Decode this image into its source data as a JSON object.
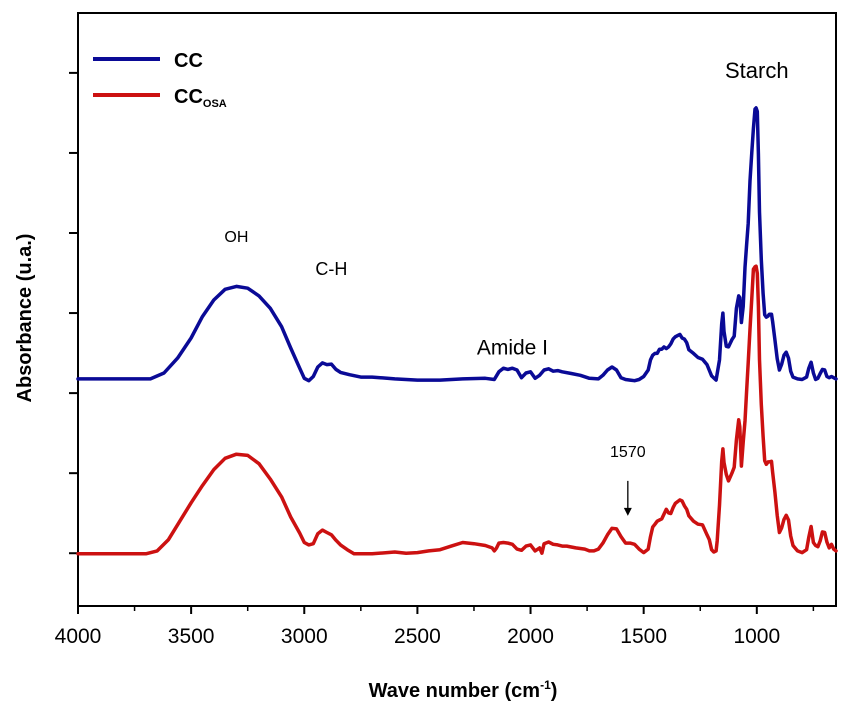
{
  "chart_data": {
    "type": "line",
    "xlabel": "Wave number (cm",
    "xlabel_sup": "-1",
    "xlabel_close": ")",
    "ylabel": "Absorbance (u.a.)",
    "xlim": [
      4000,
      650
    ],
    "ylim": [
      0,
      100
    ],
    "x_reversed": true,
    "y_tick_labels_shown": false,
    "grid": false,
    "legend_position": "top-left",
    "x_ticks": [
      "4000",
      "3500",
      "3000",
      "2500",
      "2000",
      "1500",
      "1000"
    ],
    "x_tick_values": [
      4000,
      3500,
      3000,
      2500,
      2000,
      1500,
      1000
    ],
    "x_minor_ticks": [
      3750,
      3250,
      2750,
      2250,
      1750,
      1250,
      750
    ],
    "y_tick_values": [
      8.9,
      22.4,
      35.9,
      49.4,
      62.9,
      76.4,
      89.9
    ],
    "series": [
      {
        "name": "CC",
        "color": "#0a0a96",
        "points": [
          [
            4000,
            38.3
          ],
          [
            3800,
            38.3
          ],
          [
            3680,
            38.3
          ],
          [
            3620,
            39.3
          ],
          [
            3560,
            41.8
          ],
          [
            3500,
            45.2
          ],
          [
            3450,
            48.8
          ],
          [
            3400,
            51.6
          ],
          [
            3350,
            53.4
          ],
          [
            3300,
            53.9
          ],
          [
            3250,
            53.6
          ],
          [
            3200,
            52.3
          ],
          [
            3150,
            50.2
          ],
          [
            3100,
            47.1
          ],
          [
            3060,
            43.5
          ],
          [
            3020,
            40.1
          ],
          [
            3000,
            38.4
          ],
          [
            2980,
            38.0
          ],
          [
            2960,
            38.7
          ],
          [
            2940,
            40.3
          ],
          [
            2920,
            41.0
          ],
          [
            2900,
            40.7
          ],
          [
            2880,
            40.8
          ],
          [
            2860,
            39.9
          ],
          [
            2840,
            39.4
          ],
          [
            2800,
            39.0
          ],
          [
            2750,
            38.6
          ],
          [
            2700,
            38.6
          ],
          [
            2600,
            38.3
          ],
          [
            2500,
            38.1
          ],
          [
            2400,
            38.1
          ],
          [
            2300,
            38.3
          ],
          [
            2200,
            38.4
          ],
          [
            2160,
            38.2
          ],
          [
            2140,
            39.5
          ],
          [
            2120,
            40.1
          ],
          [
            2100,
            39.9
          ],
          [
            2080,
            40.1
          ],
          [
            2060,
            39.8
          ],
          [
            2040,
            38.5
          ],
          [
            2020,
            39.3
          ],
          [
            2000,
            39.5
          ],
          [
            1980,
            38.4
          ],
          [
            1960,
            38.9
          ],
          [
            1940,
            39.8
          ],
          [
            1920,
            40.0
          ],
          [
            1900,
            39.6
          ],
          [
            1880,
            39.7
          ],
          [
            1860,
            39.5
          ],
          [
            1820,
            39.2
          ],
          [
            1780,
            38.9
          ],
          [
            1740,
            38.4
          ],
          [
            1700,
            38.3
          ],
          [
            1680,
            38.9
          ],
          [
            1660,
            39.8
          ],
          [
            1640,
            40.3
          ],
          [
            1620,
            39.8
          ],
          [
            1600,
            38.5
          ],
          [
            1580,
            38.2
          ],
          [
            1560,
            38.1
          ],
          [
            1540,
            38.0
          ],
          [
            1520,
            38.2
          ],
          [
            1500,
            38.7
          ],
          [
            1480,
            39.8
          ],
          [
            1470,
            41.5
          ],
          [
            1460,
            42.3
          ],
          [
            1450,
            42.6
          ],
          [
            1440,
            42.6
          ],
          [
            1430,
            43.3
          ],
          [
            1420,
            43.3
          ],
          [
            1410,
            43.7
          ],
          [
            1400,
            43.4
          ],
          [
            1390,
            43.7
          ],
          [
            1380,
            44.2
          ],
          [
            1370,
            45.0
          ],
          [
            1360,
            45.4
          ],
          [
            1350,
            45.6
          ],
          [
            1340,
            45.8
          ],
          [
            1330,
            45.2
          ],
          [
            1320,
            45.0
          ],
          [
            1310,
            44.4
          ],
          [
            1300,
            43.2
          ],
          [
            1280,
            42.6
          ],
          [
            1260,
            41.9
          ],
          [
            1240,
            41.6
          ],
          [
            1220,
            40.7
          ],
          [
            1200,
            38.8
          ],
          [
            1180,
            38.1
          ],
          [
            1165,
            41.5
          ],
          [
            1155,
            47.6
          ],
          [
            1150,
            49.4
          ],
          [
            1145,
            46.3
          ],
          [
            1135,
            43.8
          ],
          [
            1125,
            43.7
          ],
          [
            1110,
            44.9
          ],
          [
            1100,
            45.5
          ],
          [
            1090,
            50.2
          ],
          [
            1080,
            52.3
          ],
          [
            1075,
            52.0
          ],
          [
            1068,
            47.8
          ],
          [
            1060,
            50.5
          ],
          [
            1052,
            57.1
          ],
          [
            1045,
            60.9
          ],
          [
            1038,
            64.5
          ],
          [
            1030,
            71.7
          ],
          [
            1022,
            76.5
          ],
          [
            1015,
            80.5
          ],
          [
            1008,
            83.8
          ],
          [
            1003,
            84.0
          ],
          [
            998,
            83.4
          ],
          [
            993,
            76.2
          ],
          [
            988,
            66.4
          ],
          [
            980,
            58.4
          ],
          [
            972,
            52.7
          ],
          [
            965,
            49.1
          ],
          [
            958,
            48.7
          ],
          [
            950,
            48.9
          ],
          [
            945,
            49.2
          ],
          [
            935,
            49.2
          ],
          [
            930,
            48.0
          ],
          [
            920,
            44.9
          ],
          [
            910,
            41.7
          ],
          [
            900,
            39.8
          ],
          [
            890,
            40.8
          ],
          [
            880,
            42.3
          ],
          [
            870,
            42.8
          ],
          [
            860,
            41.8
          ],
          [
            850,
            39.6
          ],
          [
            840,
            38.6
          ],
          [
            820,
            38.3
          ],
          [
            800,
            38.2
          ],
          [
            780,
            38.6
          ],
          [
            770,
            40.1
          ],
          [
            760,
            41.1
          ],
          [
            750,
            39.3
          ],
          [
            740,
            38.2
          ],
          [
            730,
            38.4
          ],
          [
            720,
            39.2
          ],
          [
            710,
            39.9
          ],
          [
            700,
            39.8
          ],
          [
            690,
            38.7
          ],
          [
            680,
            38.5
          ],
          [
            670,
            38.7
          ],
          [
            660,
            38.5
          ],
          [
            650,
            38.3
          ]
        ]
      },
      {
        "name": "CC",
        "name_sub": "OSA",
        "color": "#cc1111",
        "points": [
          [
            4000,
            8.8
          ],
          [
            3800,
            8.8
          ],
          [
            3700,
            8.8
          ],
          [
            3650,
            9.3
          ],
          [
            3600,
            11.2
          ],
          [
            3550,
            14.3
          ],
          [
            3500,
            17.4
          ],
          [
            3450,
            20.3
          ],
          [
            3400,
            23.0
          ],
          [
            3350,
            24.9
          ],
          [
            3300,
            25.6
          ],
          [
            3250,
            25.4
          ],
          [
            3200,
            24.0
          ],
          [
            3150,
            21.4
          ],
          [
            3100,
            18.4
          ],
          [
            3060,
            15.0
          ],
          [
            3020,
            12.3
          ],
          [
            3000,
            10.7
          ],
          [
            2980,
            10.3
          ],
          [
            2960,
            10.5
          ],
          [
            2940,
            12.2
          ],
          [
            2920,
            12.8
          ],
          [
            2900,
            12.4
          ],
          [
            2880,
            12.0
          ],
          [
            2860,
            11.1
          ],
          [
            2840,
            10.3
          ],
          [
            2810,
            9.5
          ],
          [
            2780,
            8.8
          ],
          [
            2700,
            8.8
          ],
          [
            2600,
            9.1
          ],
          [
            2550,
            8.9
          ],
          [
            2500,
            9.0
          ],
          [
            2450,
            9.3
          ],
          [
            2400,
            9.5
          ],
          [
            2350,
            10.1
          ],
          [
            2300,
            10.7
          ],
          [
            2250,
            10.5
          ],
          [
            2200,
            10.2
          ],
          [
            2170,
            9.8
          ],
          [
            2160,
            9.3
          ],
          [
            2150,
            9.8
          ],
          [
            2140,
            10.6
          ],
          [
            2120,
            10.7
          ],
          [
            2100,
            10.6
          ],
          [
            2080,
            10.4
          ],
          [
            2060,
            9.6
          ],
          [
            2040,
            9.4
          ],
          [
            2020,
            10.1
          ],
          [
            2000,
            10.3
          ],
          [
            1980,
            9.3
          ],
          [
            1960,
            9.8
          ],
          [
            1950,
            8.9
          ],
          [
            1940,
            10.5
          ],
          [
            1920,
            10.8
          ],
          [
            1900,
            10.4
          ],
          [
            1880,
            10.3
          ],
          [
            1860,
            10.1
          ],
          [
            1840,
            10.1
          ],
          [
            1800,
            9.8
          ],
          [
            1760,
            9.6
          ],
          [
            1740,
            9.3
          ],
          [
            1720,
            9.3
          ],
          [
            1700,
            9.6
          ],
          [
            1680,
            10.6
          ],
          [
            1660,
            12.0
          ],
          [
            1640,
            13.1
          ],
          [
            1620,
            13.0
          ],
          [
            1600,
            11.7
          ],
          [
            1580,
            10.6
          ],
          [
            1570,
            10.6
          ],
          [
            1560,
            10.6
          ],
          [
            1540,
            10.4
          ],
          [
            1520,
            9.6
          ],
          [
            1500,
            9.0
          ],
          [
            1480,
            9.6
          ],
          [
            1470,
            11.7
          ],
          [
            1460,
            13.3
          ],
          [
            1450,
            13.8
          ],
          [
            1440,
            14.3
          ],
          [
            1420,
            14.7
          ],
          [
            1400,
            16.3
          ],
          [
            1390,
            15.7
          ],
          [
            1380,
            15.6
          ],
          [
            1370,
            16.6
          ],
          [
            1360,
            17.3
          ],
          [
            1350,
            17.6
          ],
          [
            1340,
            17.9
          ],
          [
            1330,
            17.7
          ],
          [
            1320,
            16.9
          ],
          [
            1310,
            16.3
          ],
          [
            1300,
            15.2
          ],
          [
            1280,
            14.3
          ],
          [
            1260,
            13.8
          ],
          [
            1240,
            13.7
          ],
          [
            1220,
            12.0
          ],
          [
            1210,
            11.2
          ],
          [
            1200,
            9.5
          ],
          [
            1190,
            9.1
          ],
          [
            1180,
            9.3
          ],
          [
            1175,
            11.0
          ],
          [
            1165,
            17.0
          ],
          [
            1155,
            24.4
          ],
          [
            1150,
            26.5
          ],
          [
            1145,
            24.2
          ],
          [
            1135,
            22.2
          ],
          [
            1125,
            21.1
          ],
          [
            1110,
            22.4
          ],
          [
            1100,
            23.4
          ],
          [
            1090,
            28.0
          ],
          [
            1080,
            31.4
          ],
          [
            1075,
            30.2
          ],
          [
            1068,
            23.6
          ],
          [
            1060,
            27.6
          ],
          [
            1052,
            31.2
          ],
          [
            1045,
            36.2
          ],
          [
            1038,
            41.0
          ],
          [
            1030,
            46.7
          ],
          [
            1022,
            51.9
          ],
          [
            1015,
            56.8
          ],
          [
            1008,
            57.2
          ],
          [
            1003,
            57.3
          ],
          [
            998,
            56.1
          ],
          [
            993,
            50.6
          ],
          [
            988,
            41.5
          ],
          [
            980,
            34.0
          ],
          [
            972,
            28.6
          ],
          [
            965,
            24.5
          ],
          [
            958,
            23.9
          ],
          [
            950,
            24.3
          ],
          [
            945,
            24.3
          ],
          [
            935,
            24.4
          ],
          [
            930,
            22.6
          ],
          [
            920,
            19.2
          ],
          [
            910,
            15.3
          ],
          [
            900,
            12.4
          ],
          [
            890,
            13.2
          ],
          [
            880,
            14.6
          ],
          [
            870,
            15.3
          ],
          [
            860,
            14.5
          ],
          [
            850,
            11.8
          ],
          [
            840,
            10.2
          ],
          [
            820,
            9.3
          ],
          [
            800,
            9.0
          ],
          [
            780,
            9.5
          ],
          [
            770,
            11.6
          ],
          [
            760,
            13.4
          ],
          [
            750,
            10.7
          ],
          [
            740,
            10.2
          ],
          [
            730,
            10.0
          ],
          [
            720,
            11.0
          ],
          [
            710,
            12.5
          ],
          [
            700,
            12.4
          ],
          [
            690,
            10.8
          ],
          [
            680,
            9.8
          ],
          [
            670,
            10.4
          ],
          [
            660,
            9.6
          ],
          [
            650,
            9.3
          ]
        ]
      }
    ],
    "annotations": [
      {
        "text": "Starch",
        "x": 1000,
        "y": 89.0,
        "size": 22
      },
      {
        "text": "OH",
        "x": 3300,
        "y": 61.4,
        "size": 16
      },
      {
        "text": "C-H",
        "x": 2880,
        "y": 55.8,
        "size": 18
      },
      {
        "text": "Amide I",
        "x": 2080,
        "y": 42.4,
        "size": 21
      },
      {
        "text": "1570",
        "x": 1570,
        "y": 25.1,
        "size": 16
      }
    ],
    "arrow": {
      "x": 1570,
      "y_from": 21.1,
      "y_to": 15.2
    }
  }
}
